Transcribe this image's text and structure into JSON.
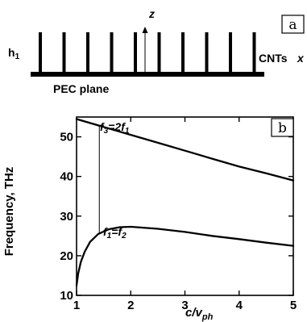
{
  "panel_a": {
    "label": "a",
    "z_axis_label": "z",
    "height_label_main": "h",
    "height_label_sub": "1",
    "cnt_label": "CNTs",
    "x_axis_label": "x",
    "plane_label": "PEC plane",
    "tube_count": 10
  },
  "chart_data": {
    "type": "line",
    "panel_label": "b",
    "ylabel": "Frequency, THz",
    "xlabel_main": "c/v",
    "xlabel_sub": "ph",
    "xlim": [
      1,
      5
    ],
    "ylim": [
      10,
      55
    ],
    "x_ticks": [
      1,
      2,
      3,
      4,
      5
    ],
    "y_ticks": [
      10,
      20,
      30,
      40,
      50
    ],
    "grid": false,
    "annotation_upper": {
      "main": "f",
      "sub": "3",
      "rest": "=2f",
      "sub2": "1"
    },
    "annotation_lower": {
      "main": "f",
      "sub": "1",
      "rest": "=f",
      "sub2": "2"
    },
    "marker_x": 1.42,
    "series": [
      {
        "x": [
          1.0,
          1.5,
          2.0,
          2.5,
          3.0,
          3.5,
          4.0,
          4.5,
          5.0
        ],
        "y": [
          54.5,
          52.5,
          50.5,
          48.5,
          46.5,
          44.5,
          42.5,
          40.8,
          39.0
        ]
      },
      {
        "x": [
          1.0,
          1.03,
          1.08,
          1.15,
          1.25,
          1.4,
          1.6,
          1.8,
          2.0,
          2.5,
          3.0,
          3.5,
          4.0,
          4.5,
          5.0
        ],
        "y": [
          12.5,
          15.5,
          18.5,
          21.0,
          23.5,
          25.5,
          26.7,
          27.2,
          27.3,
          26.8,
          26.0,
          25.0,
          24.2,
          23.3,
          22.5
        ]
      }
    ]
  }
}
